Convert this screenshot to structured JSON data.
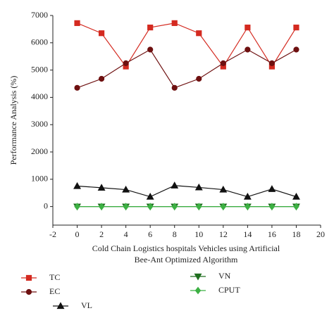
{
  "chart_data": {
    "type": "line",
    "ylabel": "Performance Analysis (%)",
    "xlabel": [
      "Cold Chain Logistics hospitals Vehicles using Artificial",
      "Bee-Ant Optimized Algorithm"
    ],
    "x": [
      0,
      2,
      4,
      6,
      8,
      10,
      12,
      14,
      16,
      18
    ],
    "series": [
      {
        "name": "TC",
        "color": "#d42a20",
        "marker": "square",
        "values": [
          6720,
          6350,
          5130,
          6560,
          6720,
          6350,
          5130,
          6560,
          5130,
          6560
        ]
      },
      {
        "name": "EC",
        "color": "#6e1010",
        "marker": "circle",
        "values": [
          4350,
          4680,
          5250,
          5750,
          4350,
          4680,
          5250,
          5750,
          5250,
          5750
        ]
      },
      {
        "name": "VL",
        "color": "#111111",
        "marker": "triangle",
        "values": [
          750,
          690,
          620,
          360,
          770,
          700,
          620,
          360,
          640,
          360
        ]
      },
      {
        "name": "VN",
        "color": "#1f6e1f",
        "marker": "triangle-down",
        "values": [
          0,
          0,
          0,
          0,
          0,
          0,
          0,
          0,
          0,
          0
        ]
      },
      {
        "name": "CPUT",
        "color": "#3cb043",
        "marker": "diamond",
        "values": [
          0,
          0,
          0,
          0,
          0,
          0,
          0,
          0,
          0,
          0
        ]
      }
    ],
    "xlim": [
      -2,
      20
    ],
    "xticks": [
      -2,
      0,
      2,
      4,
      6,
      8,
      10,
      12,
      14,
      16,
      18,
      20
    ],
    "ylim": [
      -680,
      7000
    ],
    "yticks": [
      0,
      1000,
      2000,
      3000,
      4000,
      5000,
      6000,
      7000
    ],
    "grid": false
  }
}
